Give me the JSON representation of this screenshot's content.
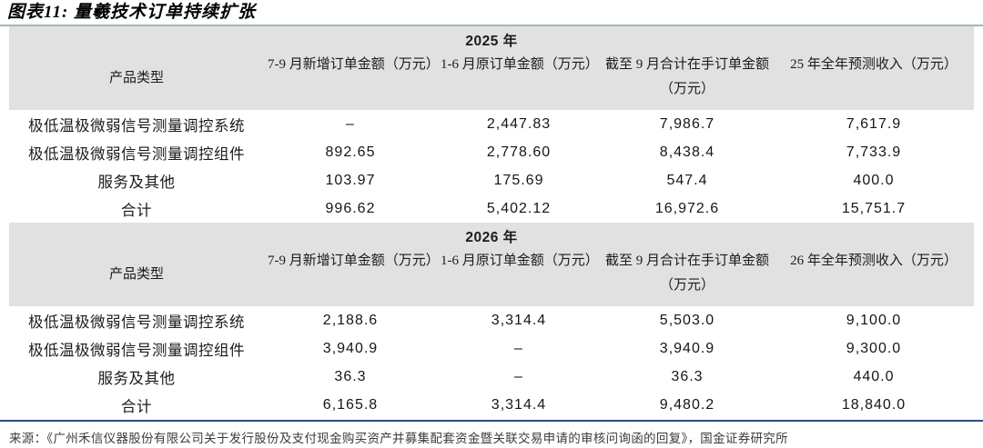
{
  "figure": {
    "title": "图表11: 量羲技术订单持续扩张",
    "source": "来源：《广州禾信仪器股份有限公司关于发行股份及支付现金购买资产并募集配套资金暨关联交易申请的审核问询函的回复》，国金证券研究所"
  },
  "colors": {
    "title_rule": "#9eb6c2",
    "header_band": "#e1e1e1",
    "bottom_rule": "#2c4d7e",
    "text": "#1b1b1b"
  },
  "sections": [
    {
      "year": "2025 年",
      "columns": [
        "产品类型",
        "7-9 月新增订单金额（万元）",
        "1-6 月原订单金额（万元）",
        "截至 9 月合计在手订单金额（万元）",
        "25 年全年预测收入（万元）"
      ],
      "rows": [
        {
          "product": "极低温极微弱信号测量调控系统",
          "new_orders": "–",
          "original_orders": "2,447.83",
          "on_hand": "7,986.7",
          "forecast": "7,617.9"
        },
        {
          "product": "极低温极微弱信号测量调控组件",
          "new_orders": "892.65",
          "original_orders": "2,778.60",
          "on_hand": "8,438.4",
          "forecast": "7,733.9"
        },
        {
          "product": "服务及其他",
          "new_orders": "103.97",
          "original_orders": "175.69",
          "on_hand": "547.4",
          "forecast": "400.0"
        },
        {
          "product": "合计",
          "new_orders": "996.62",
          "original_orders": "5,402.12",
          "on_hand": "16,972.6",
          "forecast": "15,751.7"
        }
      ]
    },
    {
      "year": "2026 年",
      "columns": [
        "产品类型",
        "7-9 月新增订单金额（万元）",
        "1-6 月原订单金额（万元）",
        "截至 9 月合计在手订单金额（万元）",
        "26 年全年预测收入（万元）"
      ],
      "rows": [
        {
          "product": "极低温极微弱信号测量调控系统",
          "new_orders": "2,188.6",
          "original_orders": "3,314.4",
          "on_hand": "5,503.0",
          "forecast": "9,100.0"
        },
        {
          "product": "极低温极微弱信号测量调控组件",
          "new_orders": "3,940.9",
          "original_orders": "–",
          "on_hand": "3,940.9",
          "forecast": "9,300.0"
        },
        {
          "product": "服务及其他",
          "new_orders": "36.3",
          "original_orders": "–",
          "on_hand": "36.3",
          "forecast": "440.0"
        },
        {
          "product": "合计",
          "new_orders": "6,165.8",
          "original_orders": "3,314.4",
          "on_hand": "9,480.2",
          "forecast": "18,840.0"
        }
      ]
    }
  ],
  "chart_data": [
    {
      "type": "table",
      "title": "2025 年",
      "columns": [
        "产品类型",
        "7-9月新增订单金额（万元）",
        "1-6月原订单金额（万元）",
        "截至9月合计在手订单金额（万元）",
        "25年全年预测收入（万元）"
      ],
      "rows": [
        [
          "极低温极微弱信号测量调控系统",
          null,
          2447.83,
          7986.7,
          7617.9
        ],
        [
          "极低温极微弱信号测量调控组件",
          892.65,
          2778.6,
          8438.4,
          7733.9
        ],
        [
          "服务及其他",
          103.97,
          175.69,
          547.4,
          400.0
        ],
        [
          "合计",
          996.62,
          5402.12,
          16972.6,
          15751.7
        ]
      ]
    },
    {
      "type": "table",
      "title": "2026 年",
      "columns": [
        "产品类型",
        "7-9月新增订单金额（万元）",
        "1-6月原订单金额（万元）",
        "截至9月合计在手订单金额（万元）",
        "26年全年预测收入（万元）"
      ],
      "rows": [
        [
          "极低温极微弱信号测量调控系统",
          2188.6,
          3314.4,
          5503.0,
          9100.0
        ],
        [
          "极低温极微弱信号测量调控组件",
          3940.9,
          null,
          3940.9,
          9300.0
        ],
        [
          "服务及其他",
          36.3,
          null,
          36.3,
          440.0
        ],
        [
          "合计",
          6165.8,
          3314.4,
          9480.2,
          18840.0
        ]
      ]
    }
  ]
}
